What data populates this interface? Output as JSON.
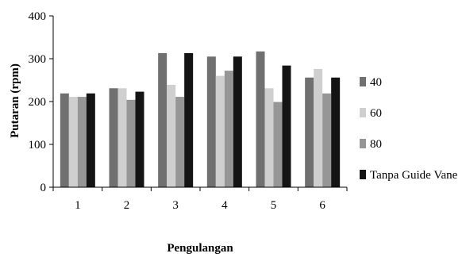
{
  "chart_data": {
    "type": "bar",
    "categories": [
      "1",
      "2",
      "3",
      "4",
      "5",
      "6"
    ],
    "series": [
      {
        "name": "40",
        "color": "#707070",
        "values": [
          219,
          231,
          313,
          305,
          317,
          256
        ]
      },
      {
        "name": "60",
        "color": "#cfcfcf",
        "values": [
          211,
          231,
          239,
          260,
          231,
          276
        ]
      },
      {
        "name": "80",
        "color": "#969696",
        "values": [
          211,
          204,
          211,
          272,
          199,
          219
        ]
      },
      {
        "name": "Tanpa Guide Vane",
        "color": "#141414",
        "values": [
          219,
          223,
          313,
          305,
          284,
          256
        ]
      }
    ],
    "xlabel": "Pengulangan",
    "ylabel": "Putaran (rpm)",
    "ylim": [
      0,
      400
    ],
    "yticks": [
      "0",
      "100",
      "200",
      "300",
      "400"
    ],
    "grid": false,
    "legend_position": "right"
  }
}
